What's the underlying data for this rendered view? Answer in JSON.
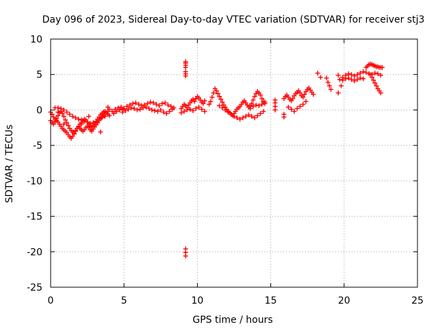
{
  "chart_data": {
    "type": "scatter",
    "title": "Day 096 of 2023, Sidereal Day-to-day VTEC variation (SDTVAR) for receiver stj3",
    "xlabel": "GPS time / hours",
    "ylabel": "SDTVAR / TECUs",
    "xlim": [
      0,
      25
    ],
    "ylim": [
      -25,
      10
    ],
    "xticks": [
      "0",
      "5",
      "10",
      "15",
      "20",
      "25"
    ],
    "yticks": [
      "-25",
      "-20",
      "-15",
      "-10",
      "-5",
      "0",
      "5",
      "10"
    ],
    "grid": true,
    "marker": "plus",
    "series_color": "#ff0000",
    "series": [
      {
        "name": "SDTVAR",
        "x": [
          0.0,
          0.1,
          0.2,
          0.3,
          0.4,
          0.5,
          0.6,
          0.7,
          0.8,
          0.9,
          1.0,
          1.1,
          1.2,
          1.3,
          1.4,
          1.5,
          1.6,
          1.7,
          1.8,
          1.9,
          2.0,
          2.1,
          2.2,
          2.3,
          2.4,
          2.5,
          2.6,
          2.7,
          2.8,
          2.9,
          3.0,
          3.1,
          3.2,
          3.3,
          3.4,
          3.5,
          3.6,
          3.7,
          3.8,
          3.9,
          4.0,
          0.0,
          0.1,
          0.2,
          0.3,
          0.4,
          0.5,
          0.6,
          0.7,
          0.8,
          0.9,
          1.0,
          1.1,
          1.2,
          1.3,
          1.4,
          1.5,
          1.6,
          1.7,
          1.8,
          1.9,
          2.0,
          2.1,
          2.2,
          2.3,
          2.4,
          2.5,
          2.6,
          2.7,
          2.8,
          2.9,
          3.0,
          3.1,
          3.2,
          3.3,
          3.4,
          3.5,
          3.6,
          3.7,
          3.8,
          3.9,
          4.0,
          0.5,
          0.7,
          0.9,
          1.1,
          1.3,
          1.5,
          1.7,
          1.9,
          2.1,
          2.3,
          2.5,
          2.7,
          2.9,
          3.1,
          3.3,
          3.5,
          3.7,
          4.2,
          4.4,
          4.6,
          4.8,
          5.0,
          5.2,
          5.4,
          5.6,
          5.8,
          6.0,
          6.2,
          6.4,
          6.6,
          6.8,
          7.0,
          7.2,
          7.4,
          7.6,
          7.8,
          8.0,
          8.2,
          8.4,
          4.3,
          4.5,
          4.7,
          4.9,
          5.1,
          5.3,
          5.5,
          5.7,
          5.9,
          6.1,
          6.3,
          6.5,
          6.7,
          6.9,
          7.1,
          7.3,
          7.5,
          7.7,
          7.9,
          8.1,
          8.3,
          8.9,
          9.0,
          9.1,
          9.2,
          9.3,
          9.4,
          9.5,
          9.6,
          9.7,
          9.8,
          9.9,
          10.0,
          10.1,
          10.2,
          10.3,
          10.4,
          10.5,
          8.9,
          9.1,
          9.3,
          9.5,
          9.7,
          9.9,
          10.1,
          10.3,
          10.5,
          9.2,
          9.2,
          9.2,
          9.2,
          9.2,
          9.2,
          9.2,
          9.2,
          9.2,
          9.2,
          10.8,
          10.9,
          11.0,
          11.1,
          11.2,
          11.3,
          11.4,
          11.5,
          11.6,
          11.7,
          11.8,
          11.9,
          12.0,
          12.1,
          12.2,
          12.3,
          12.4,
          12.5,
          12.6,
          12.7,
          12.8,
          12.9,
          13.0,
          13.1,
          13.2,
          13.3,
          13.4,
          13.5,
          13.6,
          13.7,
          13.8,
          13.9,
          14.0,
          14.1,
          14.2,
          14.3,
          14.4,
          14.5,
          14.6,
          11.5,
          11.7,
          11.9,
          12.1,
          12.3,
          12.5,
          12.7,
          12.9,
          13.1,
          13.3,
          13.5,
          13.7,
          13.9,
          14.1,
          14.3,
          14.5,
          13.6,
          13.8,
          14.0,
          14.2,
          14.4,
          14.6,
          15.3,
          15.3,
          15.3,
          15.3,
          15.9,
          16.0,
          16.1,
          16.2,
          16.3,
          16.4,
          16.5,
          16.6,
          16.7,
          16.8,
          16.9,
          17.0,
          17.1,
          17.2,
          17.3,
          17.4,
          17.5,
          17.6,
          17.7,
          17.8,
          17.9,
          16.2,
          16.4,
          16.6,
          16.8,
          17.0,
          17.2,
          17.4,
          15.9,
          15.9,
          18.2,
          18.4,
          18.8,
          18.9,
          19.0,
          19.1,
          19.6,
          19.7,
          19.8,
          19.6,
          19.9,
          20.1,
          20.3,
          20.5,
          20.7,
          20.9,
          21.1,
          21.3,
          21.5,
          21.7,
          21.9,
          22.1,
          22.3,
          22.5,
          19.9,
          20.1,
          20.3,
          20.5,
          20.7,
          20.9,
          21.1,
          21.3,
          21.5,
          21.6,
          21.7,
          21.8,
          21.9,
          22.0,
          22.1,
          22.2,
          22.3,
          22.4,
          22.5,
          22.6,
          21.8,
          21.9,
          22.0,
          22.1,
          22.2,
          22.3,
          22.4,
          22.5,
          0.3,
          0.5,
          0.9,
          1.6,
          2.1,
          2.6,
          3.4,
          3.9,
          4.4,
          4.9
        ],
        "y": [
          -1.5,
          -1.8,
          -2.0,
          -1.6,
          -1.2,
          -0.8,
          -0.4,
          -0.2,
          -0.5,
          -0.9,
          -1.4,
          -1.8,
          -2.2,
          -2.6,
          -2.9,
          -3.1,
          -3.3,
          -3.0,
          -2.6,
          -2.3,
          -2.0,
          -1.8,
          -1.5,
          -1.3,
          -1.4,
          -1.7,
          -2.0,
          -2.2,
          -2.4,
          -2.3,
          -2.0,
          -1.7,
          -1.3,
          -1.0,
          -0.7,
          -0.5,
          -0.3,
          -0.2,
          -0.4,
          -0.6,
          -0.8,
          -0.3,
          -0.6,
          -1.0,
          -1.3,
          -1.5,
          -1.7,
          -2.0,
          -2.3,
          -2.6,
          -2.8,
          -3.0,
          -3.2,
          -3.5,
          -3.8,
          -4.0,
          -3.7,
          -3.3,
          -2.9,
          -2.6,
          -2.4,
          -2.6,
          -2.8,
          -3.0,
          -2.8,
          -2.5,
          -2.3,
          -2.5,
          -2.8,
          -3.0,
          -2.7,
          -2.4,
          -2.1,
          -1.8,
          -1.5,
          -1.2,
          -1.0,
          -0.8,
          -0.6,
          -0.4,
          -0.2,
          0.1,
          0.3,
          0.2,
          0.0,
          -0.3,
          -0.6,
          -0.9,
          -1.1,
          -1.3,
          -1.4,
          -1.6,
          -1.7,
          -1.9,
          -1.8,
          -1.6,
          -1.3,
          -1.1,
          -0.9,
          -0.2,
          0.1,
          0.3,
          0.4,
          0.2,
          0.5,
          0.7,
          0.9,
          1.0,
          0.8,
          0.6,
          0.7,
          0.9,
          1.1,
          1.0,
          0.8,
          0.6,
          0.9,
          1.0,
          0.7,
          0.5,
          0.3,
          -0.5,
          -0.2,
          0.0,
          -0.3,
          -0.1,
          0.1,
          0.3,
          0.2,
          0.0,
          0.1,
          0.3,
          0.4,
          0.2,
          0.0,
          -0.1,
          -0.2,
          0.0,
          -0.3,
          -0.5,
          -0.2,
          0.1,
          0.2,
          0.5,
          0.8,
          0.6,
          0.3,
          0.7,
          1.0,
          1.3,
          1.5,
          1.2,
          1.6,
          1.9,
          1.7,
          1.4,
          1.1,
          0.9,
          1.3,
          -0.4,
          -0.2,
          0.0,
          0.1,
          -0.1,
          0.2,
          0.4,
          0.1,
          -0.2,
          6.8,
          6.6,
          6.3,
          6.0,
          5.4,
          5.1,
          4.8,
          -19.6,
          -20.1,
          -20.6,
          0.8,
          1.2,
          1.8,
          2.4,
          3.0,
          2.7,
          2.3,
          1.9,
          1.5,
          1.1,
          0.7,
          0.4,
          0.1,
          -0.2,
          -0.4,
          -0.6,
          -0.8,
          -0.5,
          -0.2,
          0.1,
          0.3,
          0.5,
          0.8,
          1.1,
          1.3,
          1.0,
          0.7,
          0.4,
          0.6,
          0.9,
          1.4,
          1.9,
          2.3,
          2.6,
          2.4,
          2.1,
          1.6,
          1.2,
          0.9,
          0.6,
          0.3,
          0.0,
          -0.3,
          -0.6,
          -0.9,
          -1.1,
          -1.3,
          -1.1,
          -0.9,
          -0.7,
          -0.9,
          -1.1,
          -0.8,
          -0.5,
          -0.2,
          0.2,
          0.5,
          0.7,
          0.6,
          0.8,
          1.1,
          1.4,
          1.0,
          0.5,
          0.0,
          1.6,
          1.9,
          2.1,
          1.8,
          1.5,
          1.3,
          1.6,
          2.0,
          2.3,
          2.5,
          2.7,
          2.4,
          2.0,
          1.8,
          2.2,
          2.6,
          2.9,
          3.1,
          2.8,
          2.5,
          2.2,
          0.4,
          0.1,
          -0.2,
          0.2,
          0.5,
          0.8,
          1.2,
          -0.6,
          -1.0,
          5.2,
          4.6,
          4.5,
          3.9,
          3.4,
          2.9,
          4.9,
          4.3,
          3.4,
          2.4,
          4.6,
          4.9,
          5.1,
          5.0,
          4.8,
          5.0,
          5.2,
          5.4,
          5.3,
          5.1,
          5.0,
          5.2,
          5.1,
          4.9,
          4.2,
          4.4,
          4.5,
          4.3,
          4.1,
          4.3,
          4.5,
          4.4,
          6.0,
          6.2,
          6.4,
          6.5,
          6.4,
          6.3,
          6.2,
          6.1,
          6.1,
          6.0,
          6.0,
          6.0,
          5.0,
          4.6,
          4.2,
          3.8,
          3.4,
          3.0,
          2.7,
          2.4,
          0.3,
          -0.3,
          -2.0,
          -3.4,
          -2.0,
          -0.9,
          -3.1,
          0.4,
          -0.2,
          0.1
        ]
      }
    ]
  }
}
